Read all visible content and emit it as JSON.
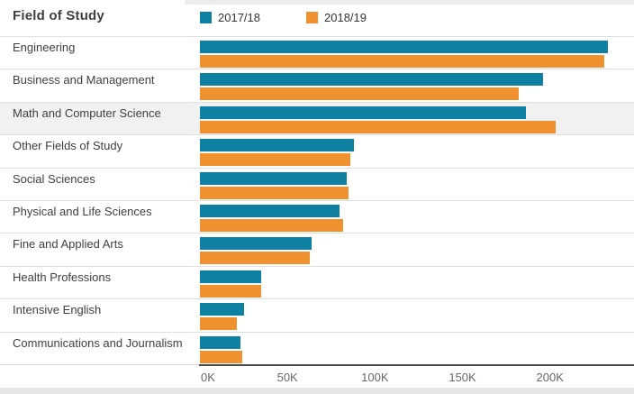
{
  "chart_data": {
    "type": "bar",
    "orientation": "horizontal",
    "title": "Field of Study",
    "legend_position": "top",
    "grid": false,
    "categories": [
      "Engineering",
      "Business and Management",
      "Math and Computer Science",
      "Other Fields of Study",
      "Social Sciences",
      "Physical and Life Sciences",
      "Fine and Applied Arts",
      "Health Professions",
      "Intensive English",
      "Communications and Journalism"
    ],
    "series": [
      {
        "name": "2017/18",
        "color": "#0e80a2",
        "values_k": [
          233,
          196,
          186,
          88,
          84,
          80,
          64,
          35,
          25,
          23
        ]
      },
      {
        "name": "2018/19",
        "color": "#f0912f",
        "values_k": [
          231,
          182,
          203,
          86,
          85,
          82,
          63,
          35,
          21,
          24
        ]
      }
    ],
    "x_axis": {
      "tick_labels": [
        "0K",
        "50K",
        "100K",
        "150K",
        "200K"
      ],
      "tick_values_k": [
        0,
        50,
        100,
        150,
        200
      ],
      "max_k": 248,
      "unit": "thousands of students"
    },
    "highlighted_category": "Math and Computer Science"
  },
  "colors": {
    "series_2017_18": "#0e80a2",
    "series_2018_19": "#f0912f",
    "axis_line": "#4a4a4a",
    "row_highlight": "#f1f1f1"
  }
}
